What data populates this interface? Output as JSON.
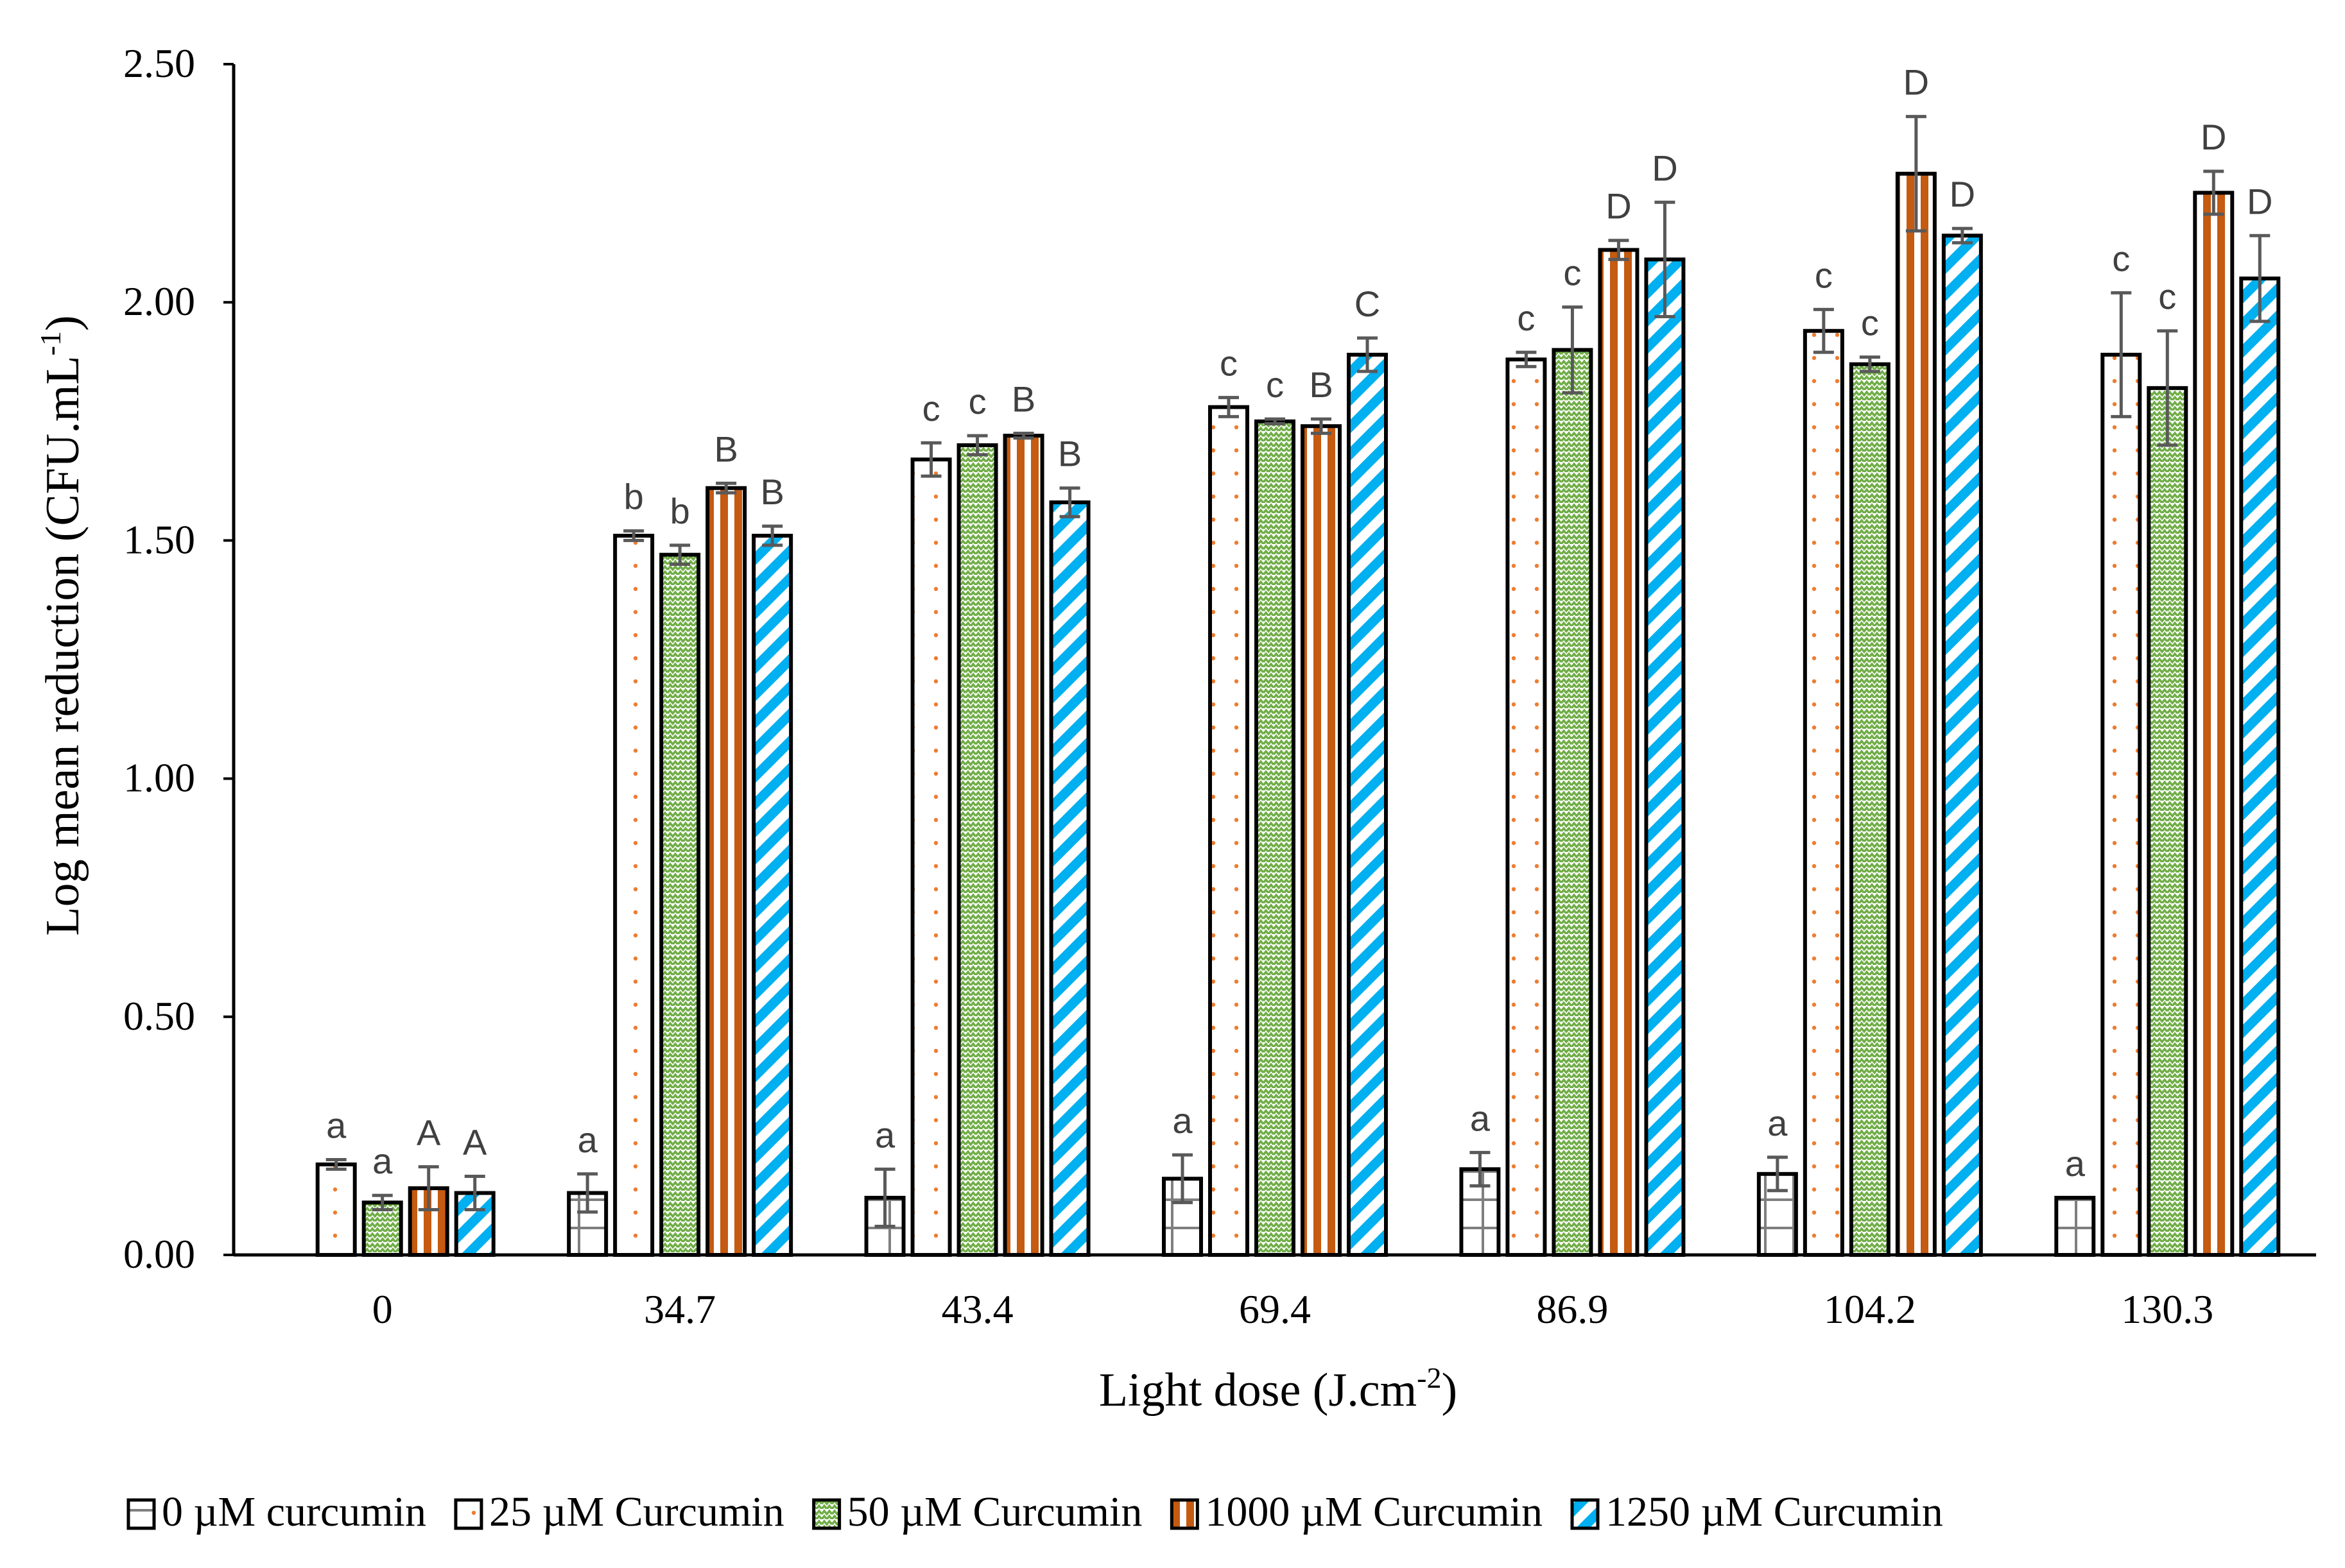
{
  "chart_data": {
    "type": "bar",
    "title": "",
    "xlabel": "Light dose (J.cm",
    "xlabel_superscript": "-2",
    "xlabel_suffix": ")",
    "ylabel": "Log mean reduction (CFU.mL",
    "ylabel_superscript": "-1",
    "ylabel_suffix": ")",
    "ylim": [
      0,
      2.5
    ],
    "yticks": [
      0,
      0.5,
      1.0,
      1.5,
      2.0,
      2.5
    ],
    "ytick_labels": [
      "0.00",
      "0.50",
      "1.00",
      "1.50",
      "2.00",
      "2.50"
    ],
    "grid": false,
    "legend_position": "bottom",
    "categories": [
      "0",
      "34.7",
      "43.4",
      "69.4",
      "86.9",
      "104.2",
      "130.3"
    ],
    "series": [
      {
        "name": "0 µM curcumin",
        "pattern": "grid",
        "color": "#7f7f7f",
        "values": [
          null,
          0.13,
          0.12,
          0.16,
          0.18,
          0.17,
          0.12
        ],
        "errors": [
          null,
          0.04,
          0.06,
          0.05,
          0.035,
          0.035,
          0.0
        ],
        "labels": [
          null,
          "a",
          "a",
          "a",
          "a",
          "a",
          "a"
        ]
      },
      {
        "name": "25 µM Curcumin",
        "pattern": "dots",
        "color": "#ed7d31",
        "values": [
          0.19,
          1.51,
          1.67,
          1.78,
          1.88,
          1.94,
          1.89
        ],
        "errors": [
          0.01,
          0.01,
          0.035,
          0.02,
          0.015,
          0.045,
          0.13
        ],
        "labels": [
          "a",
          "b",
          "c",
          "c",
          "c",
          "c",
          "c"
        ]
      },
      {
        "name": "50 µM Curcumin",
        "pattern": "zigzag",
        "color": "#70ad47",
        "values": [
          0.11,
          1.47,
          1.7,
          1.75,
          1.9,
          1.87,
          1.82
        ],
        "errors": [
          0.015,
          0.02,
          0.02,
          0.005,
          0.09,
          0.015,
          0.12
        ],
        "labels": [
          "a",
          "b",
          "c",
          "c",
          "c",
          "c",
          "c"
        ]
      },
      {
        "name": "1000 µM Curcumin",
        "pattern": "vstripes",
        "color": "#c55a11",
        "values": [
          0.14,
          1.61,
          1.72,
          1.74,
          2.11,
          2.27,
          2.23
        ],
        "errors": [
          0.045,
          0.01,
          0.005,
          0.015,
          0.02,
          0.12,
          0.045
        ],
        "labels": [
          "A",
          "B",
          "B",
          "B",
          "D",
          "D",
          "D"
        ]
      },
      {
        "name": "1250 µM Curcumin",
        "pattern": "diagstripes",
        "color": "#00b0f0",
        "values": [
          0.13,
          1.51,
          1.58,
          1.89,
          2.09,
          2.14,
          2.05
        ],
        "errors": [
          0.035,
          0.02,
          0.03,
          0.035,
          0.12,
          0.015,
          0.09
        ],
        "labels": [
          "A",
          "B",
          "B",
          "C",
          "D",
          "D",
          "D"
        ]
      }
    ]
  }
}
